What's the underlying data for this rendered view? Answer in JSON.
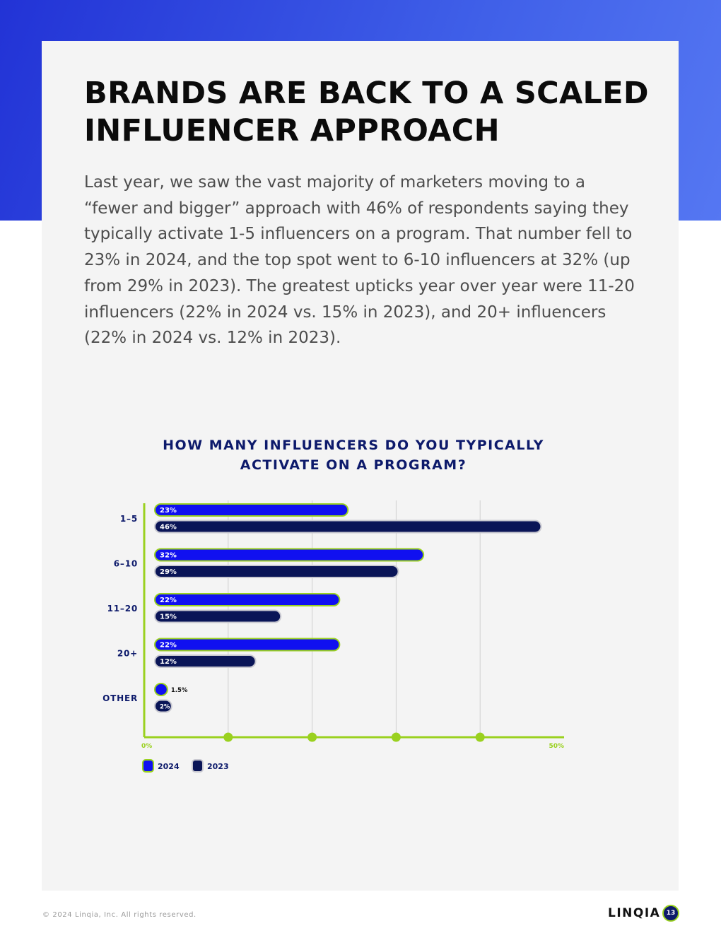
{
  "page": {
    "headline": "BRANDS ARE BACK TO A SCALED INFLUENCER APPROACH",
    "intro": "Last year, we saw the vast majority of marketers moving to a “fewer and bigger” approach with 46% of respondents saying they typically activate 1-5 influencers on a program. That number fell to 23% in 2024, and the top spot went to 6-10 influencers at 32% (up from 29% in 2023). The greatest upticks year over year were 11-20 influencers (22% in 2024 vs. 15% in 2023), and 20+ influencers (22% in 2024 vs. 12% in 2023).",
    "footer_copyright": "© 2024 Linqia, Inc. All rights reserved.",
    "logo_text": "LINQIA",
    "page_number": "13"
  },
  "colors": {
    "band": "#2e49e0",
    "series_2024": "#1010f0",
    "series_2023": "#0a1557",
    "outline_2024": "#9ad11f",
    "outline_2023": "#c8c8d0",
    "axis": "#9ad11f",
    "title": "#0d1a6b"
  },
  "chart_data": {
    "type": "bar",
    "orientation": "horizontal",
    "title": "HOW MANY INFLUENCERS DO YOU TYPICALLY ACTIVATE ON A PROGRAM?",
    "categories": [
      "1-5",
      "6-10",
      "11-20",
      "20+",
      "OTHER"
    ],
    "series": [
      {
        "name": "2024",
        "values": [
          23,
          32,
          22,
          22,
          1.5
        ],
        "labels": [
          "23%",
          "32%",
          "22%",
          "22%",
          "1.5%"
        ]
      },
      {
        "name": "2023",
        "values": [
          46,
          29,
          15,
          12,
          2
        ],
        "labels": [
          "46%",
          "29%",
          "15%",
          "12%",
          "2%"
        ]
      }
    ],
    "xlim": [
      0,
      50
    ],
    "x_tick_labels": [
      "0%",
      "50%"
    ],
    "gridlines": [
      10,
      20,
      30,
      40
    ],
    "legend_position": "bottom-left",
    "grid": true
  }
}
